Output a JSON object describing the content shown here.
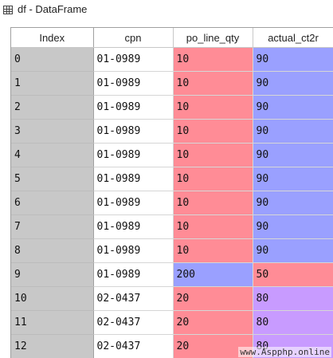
{
  "window": {
    "title": "df - DataFrame",
    "icon": "table-grid-icon"
  },
  "table": {
    "headers": [
      "Index",
      "cpn",
      "po_line_qty",
      "actual_ct2r"
    ],
    "rows": [
      {
        "index": "0",
        "cpn": "01-0989",
        "po_line_qty": "10",
        "actual_ct2r": "90",
        "po_color": "#ff8c96",
        "ct_color": "#9aa0ff"
      },
      {
        "index": "1",
        "cpn": "01-0989",
        "po_line_qty": "10",
        "actual_ct2r": "90",
        "po_color": "#ff8c96",
        "ct_color": "#9aa0ff"
      },
      {
        "index": "2",
        "cpn": "01-0989",
        "po_line_qty": "10",
        "actual_ct2r": "90",
        "po_color": "#ff8c96",
        "ct_color": "#9aa0ff"
      },
      {
        "index": "3",
        "cpn": "01-0989",
        "po_line_qty": "10",
        "actual_ct2r": "90",
        "po_color": "#ff8c96",
        "ct_color": "#9aa0ff"
      },
      {
        "index": "4",
        "cpn": "01-0989",
        "po_line_qty": "10",
        "actual_ct2r": "90",
        "po_color": "#ff8c96",
        "ct_color": "#9aa0ff"
      },
      {
        "index": "5",
        "cpn": "01-0989",
        "po_line_qty": "10",
        "actual_ct2r": "90",
        "po_color": "#ff8c96",
        "ct_color": "#9aa0ff"
      },
      {
        "index": "6",
        "cpn": "01-0989",
        "po_line_qty": "10",
        "actual_ct2r": "90",
        "po_color": "#ff8c96",
        "ct_color": "#9aa0ff"
      },
      {
        "index": "7",
        "cpn": "01-0989",
        "po_line_qty": "10",
        "actual_ct2r": "90",
        "po_color": "#ff8c96",
        "ct_color": "#9aa0ff"
      },
      {
        "index": "8",
        "cpn": "01-0989",
        "po_line_qty": "10",
        "actual_ct2r": "90",
        "po_color": "#ff8c96",
        "ct_color": "#9aa0ff"
      },
      {
        "index": "9",
        "cpn": "01-0989",
        "po_line_qty": "200",
        "actual_ct2r": "50",
        "po_color": "#9aa0ff",
        "ct_color": "#ff8c96"
      },
      {
        "index": "10",
        "cpn": "02-0437",
        "po_line_qty": "20",
        "actual_ct2r": "80",
        "po_color": "#ff8c96",
        "ct_color": "#c89bff"
      },
      {
        "index": "11",
        "cpn": "02-0437",
        "po_line_qty": "20",
        "actual_ct2r": "80",
        "po_color": "#ff8c96",
        "ct_color": "#c89bff"
      },
      {
        "index": "12",
        "cpn": "02-0437",
        "po_line_qty": "20",
        "actual_ct2r": "80",
        "po_color": "#ff8c96",
        "ct_color": "#c89bff"
      }
    ]
  },
  "watermark": "www.Aspphp.online"
}
